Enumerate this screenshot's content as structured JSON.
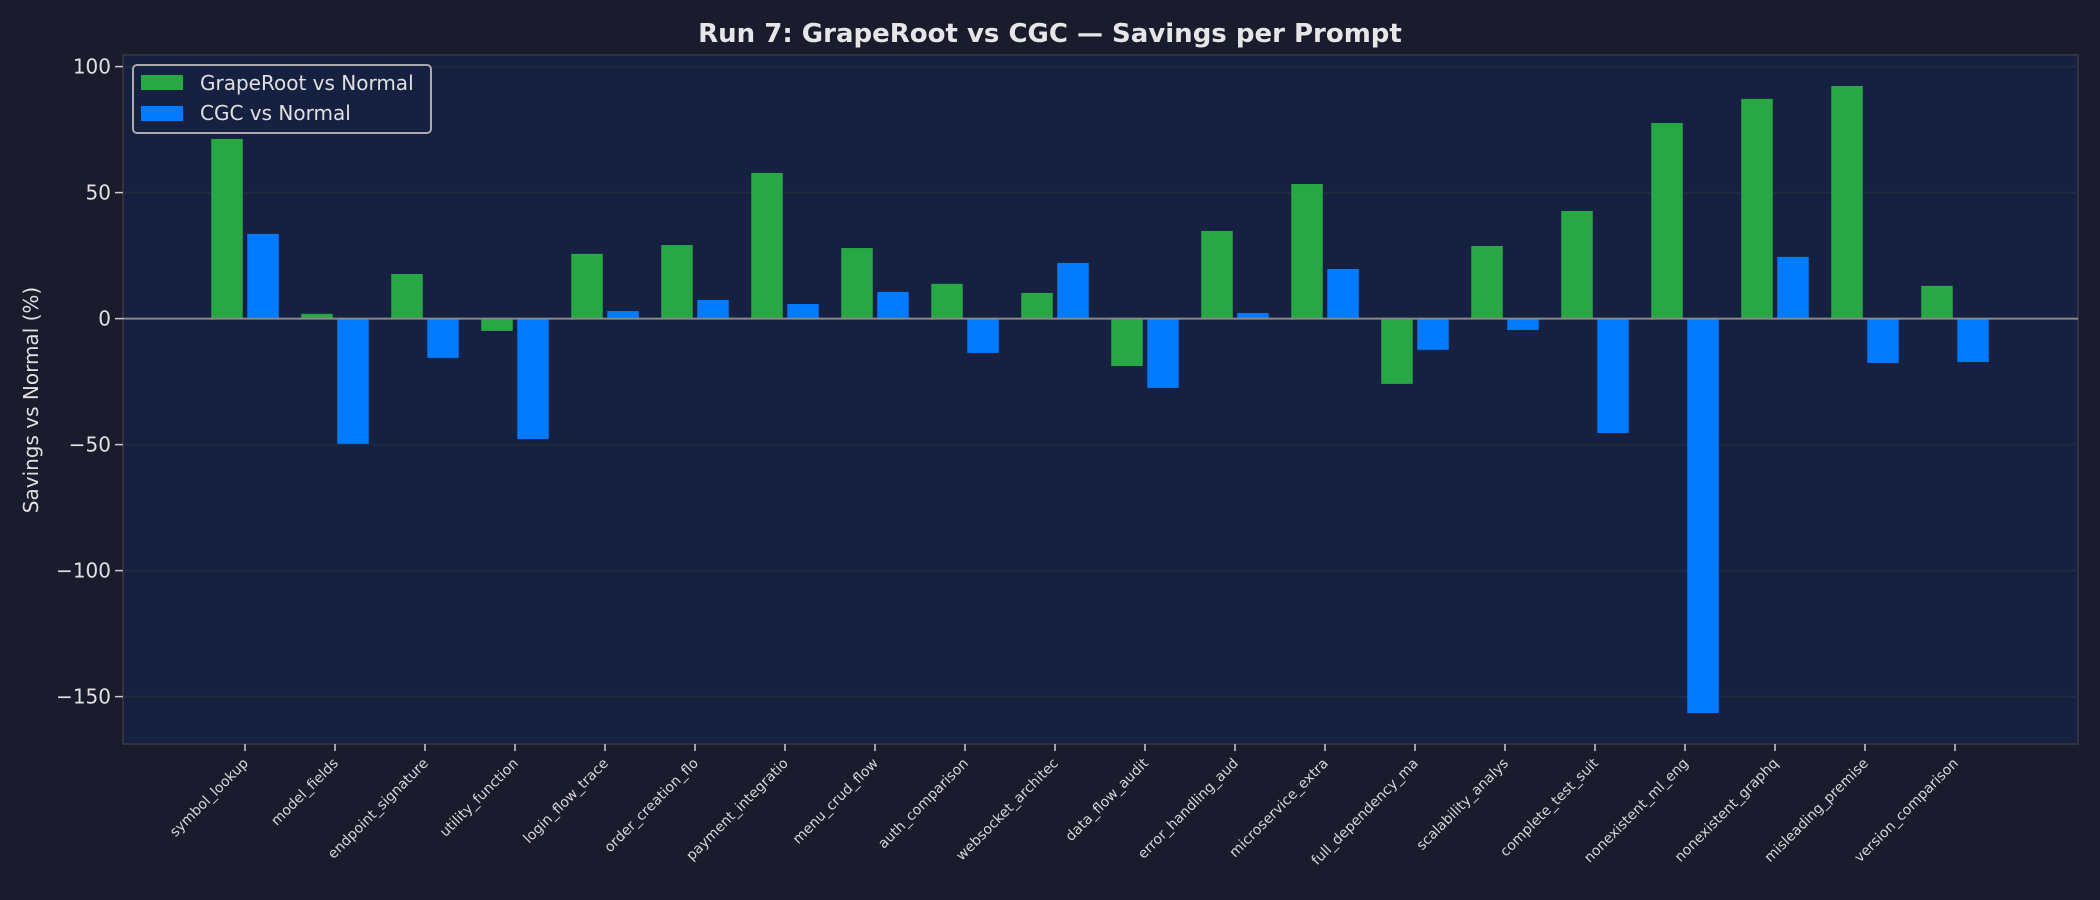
{
  "chart_data": {
    "type": "bar",
    "title": "Run 7: GrapeRoot vs CGC — Savings per Prompt",
    "xlabel": "",
    "ylabel": "Savings vs Normal (%)",
    "ylim": [
      -168.8,
      104.6
    ],
    "yticks": [
      -150,
      -100,
      -50,
      0,
      50,
      100
    ],
    "ytick_labels": [
      "−150",
      "−100",
      "−50",
      "0",
      "50",
      "100"
    ],
    "grid": true,
    "legend_position": "top-left",
    "categories": [
      "symbol_lookup",
      "model_fields",
      "endpoint_signature",
      "utility_function",
      "login_flow_trace",
      "order_creation_flo",
      "payment_integratio",
      "menu_crud_flow",
      "auth_comparison",
      "websocket_architec",
      "data_flow_audit",
      "error_handling_aud",
      "microservice_extra",
      "full_dependency_ma",
      "scalability_analys",
      "complete_test_suit",
      "nonexistent_ml_eng",
      "nonexistent_graphq",
      "misleading_premise",
      "version_comparison"
    ],
    "series": [
      {
        "name": "GrapeRoot vs Normal",
        "color": "#28a745",
        "values": [
          71.3,
          1.9,
          17.7,
          -4.9,
          25.7,
          29.2,
          57.8,
          28.0,
          13.8,
          10.2,
          -18.8,
          34.8,
          53.4,
          -25.9,
          28.8,
          42.7,
          77.6,
          87.2,
          92.3,
          13.0
        ]
      },
      {
        "name": "CGC vs Normal",
        "color": "#007bff",
        "values": [
          33.6,
          -49.7,
          -15.6,
          -47.8,
          3.0,
          7.4,
          5.8,
          10.6,
          -13.6,
          22.1,
          -27.5,
          2.2,
          19.7,
          -12.4,
          -4.5,
          -45.4,
          -156.5,
          24.5,
          -17.6,
          -17.2
        ]
      }
    ]
  },
  "colors": {
    "background": "#1b1b2e",
    "plot_background": "#162040",
    "text": "#e0e0e0",
    "zero_line": "#888888"
  }
}
